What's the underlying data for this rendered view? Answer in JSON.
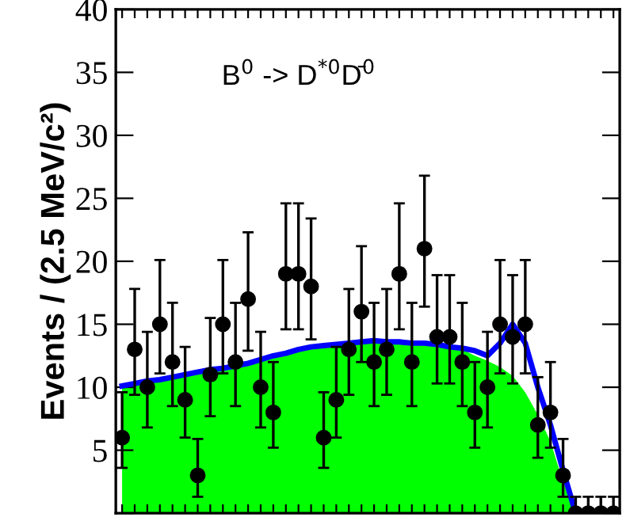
{
  "chart_data": {
    "type": "scatter",
    "ylabel": "Events / (2.5 MeV/c²)",
    "annotations": [
      "B$^{0}$ -> D$^{*0}$D̄$^{0}$"
    ],
    "categories": [
      null,
      null,
      null,
      null,
      null,
      null,
      null,
      null,
      null,
      null,
      null,
      null,
      null,
      null,
      null,
      null,
      null,
      null,
      null,
      null,
      null,
      null,
      null,
      null,
      null,
      null,
      null,
      null,
      null,
      null,
      null,
      null,
      null,
      null,
      null,
      null,
      null,
      null,
      null,
      null
    ],
    "ylim": [
      0,
      40
    ],
    "yticks": [
      {
        "value": 0,
        "label": null
      },
      5,
      10,
      15,
      20,
      25,
      30,
      35,
      40
    ],
    "tick_labels": "y",
    "series": [
      {
        "type": "area",
        "color": "#00ff00",
        "values": [
          10.1,
          10.3,
          10.5,
          10.6,
          10.8,
          11.0,
          11.2,
          11.4,
          11.5,
          11.7,
          11.9,
          12.2,
          12.5,
          12.7,
          13.0,
          13.2,
          13.3,
          13.4,
          13.5,
          13.6,
          13.7,
          13.6,
          13.6,
          13.5,
          13.5,
          13.4,
          13.2,
          13.0,
          12.5,
          12.1,
          11.6,
          10.9,
          9.6,
          7.8,
          5.7,
          2.5,
          0,
          0,
          0,
          0
        ]
      },
      {
        "type": "line",
        "color": "#0000ff",
        "line_style": "solid",
        "marker": "none",
        "values": [
          10.1,
          10.3,
          10.5,
          10.6,
          10.8,
          11.0,
          11.2,
          11.4,
          11.5,
          11.7,
          11.9,
          12.2,
          12.5,
          12.7,
          13.0,
          13.2,
          13.3,
          13.4,
          13.5,
          13.6,
          13.7,
          13.6,
          13.6,
          13.5,
          13.5,
          13.4,
          13.2,
          13.1,
          12.9,
          12.5,
          13.5,
          15.0,
          13.5,
          10.0,
          7.0,
          3.4,
          0,
          0,
          null,
          null
        ]
      },
      {
        "color": "#000000",
        "marker": "circle",
        "values": [
          6,
          13,
          10,
          15,
          12,
          9,
          3,
          11,
          15,
          12,
          17,
          10,
          8,
          19,
          19,
          18,
          6,
          9,
          13,
          16,
          12,
          13,
          19,
          12,
          21,
          14,
          14,
          12,
          8,
          10,
          15,
          14,
          15,
          7,
          8,
          3,
          0,
          0,
          0,
          0
        ],
        "errors": [
          [
            3.6,
            9.6
          ],
          [
            9.4,
            17.8
          ],
          [
            6.8,
            14.4
          ],
          [
            11.1,
            20.1
          ],
          [
            8.5,
            16.7
          ],
          [
            6.0,
            13.2
          ],
          [
            1.3,
            5.9
          ],
          [
            7.7,
            15.5
          ],
          [
            11.1,
            20.1
          ],
          [
            8.5,
            16.7
          ],
          [
            12.9,
            22.3
          ],
          [
            6.8,
            14.4
          ],
          [
            5.2,
            12.0
          ],
          [
            14.6,
            24.6
          ],
          [
            14.6,
            24.6
          ],
          [
            13.8,
            23.4
          ],
          [
            3.6,
            9.6
          ],
          [
            6.0,
            13.2
          ],
          [
            9.4,
            17.8
          ],
          [
            12.0,
            21.2
          ],
          [
            8.5,
            16.7
          ],
          [
            9.4,
            17.8
          ],
          [
            14.6,
            24.6
          ],
          [
            8.5,
            16.7
          ],
          [
            16.4,
            26.8
          ],
          [
            10.3,
            18.9
          ],
          [
            10.3,
            18.9
          ],
          [
            8.5,
            16.7
          ],
          [
            5.2,
            12.0
          ],
          [
            6.8,
            14.4
          ],
          [
            11.1,
            20.1
          ],
          [
            10.3,
            18.9
          ],
          [
            11.1,
            20.1
          ],
          [
            4.4,
            10.8
          ],
          [
            5.2,
            12.0
          ],
          [
            1.3,
            5.9
          ],
          [
            0,
            1.3
          ],
          [
            0,
            1.3
          ],
          [
            0,
            1.3
          ],
          [
            0,
            1.3
          ]
        ]
      }
    ]
  }
}
